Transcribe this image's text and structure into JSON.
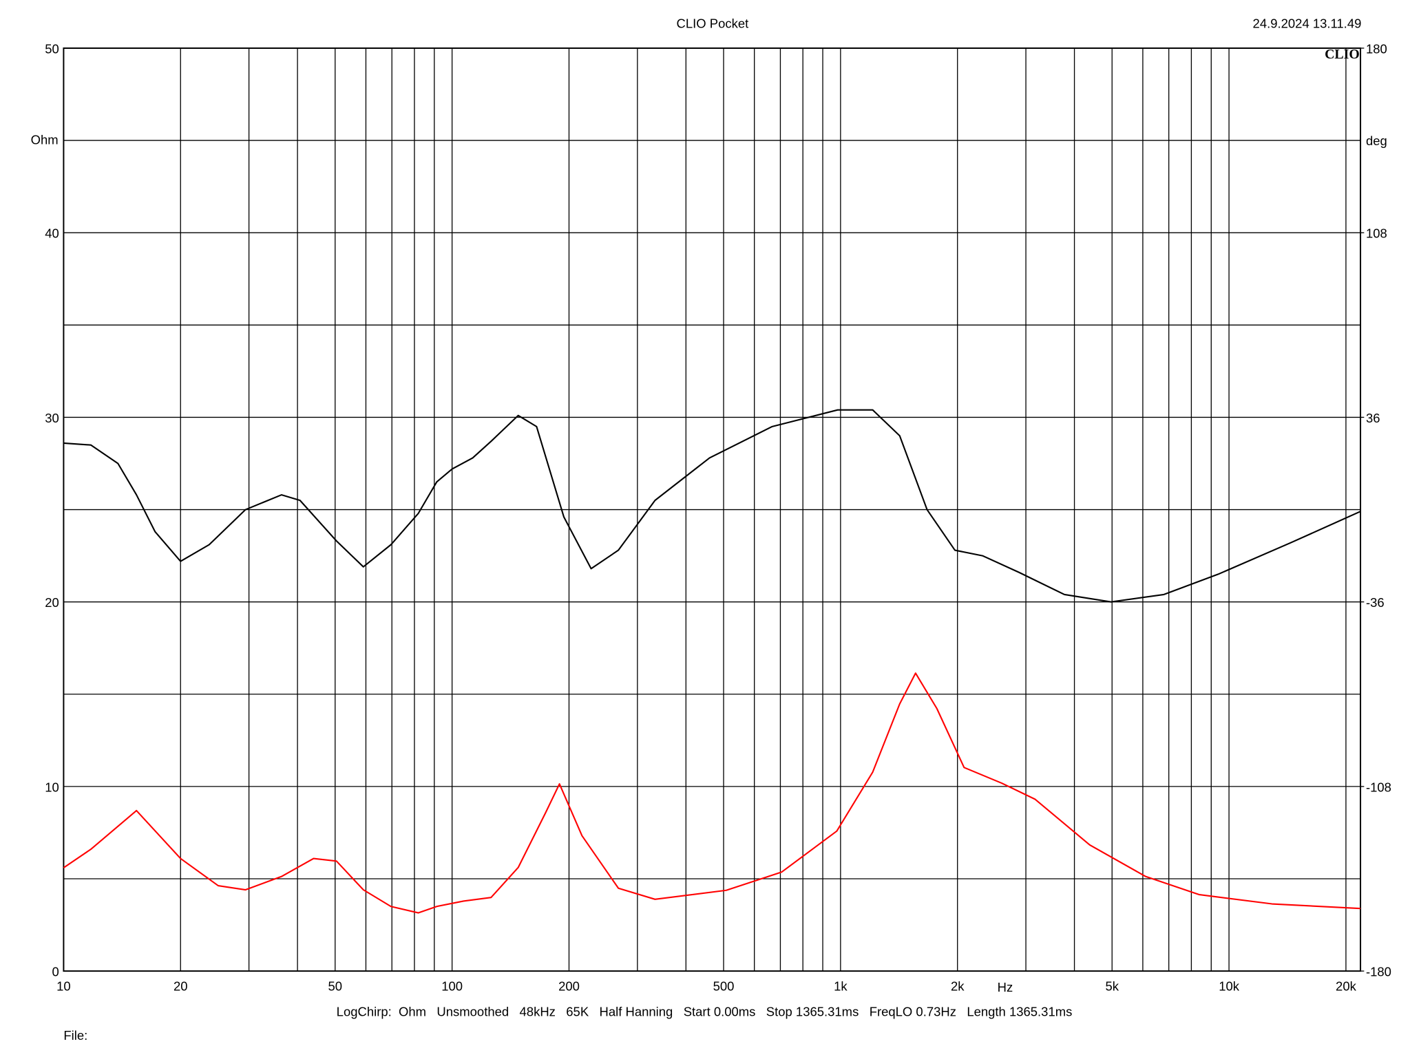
{
  "chart_data": {
    "type": "line",
    "title": "CLIO Pocket",
    "date": "24.9.2024 13.11.49",
    "logo": "CLIO",
    "ylabel": "Ohm",
    "y2label": "deg",
    "x_label": "Hz",
    "footer": "LogChirp:  Ohm   Unsmoothed   48kHz   65K   Half Hanning   Start 0.00ms   Stop 1365.31ms   FreqLO 0.73Hz   Length 1365.31ms",
    "file_label": "File:",
    "xscale": "log",
    "grid": true,
    "xlim": [
      10,
      21800
    ],
    "xticks": [
      10,
      20,
      50,
      100,
      200,
      500,
      {
        "value": 1000,
        "label": "1k"
      },
      {
        "value": 2000,
        "label": "2k"
      },
      {
        "value": 5000,
        "label": "5k"
      },
      {
        "value": 10000,
        "label": "10k"
      },
      {
        "value": 20000,
        "label": "20k"
      }
    ],
    "xminor": [
      30,
      40,
      60,
      70,
      80,
      90,
      300,
      400,
      600,
      700,
      800,
      900,
      3000,
      4000,
      6000,
      7000,
      8000,
      9000
    ],
    "ylim": [
      0,
      50
    ],
    "yticks": [
      0,
      10,
      20,
      30,
      40,
      50
    ],
    "yminor": [
      5,
      15,
      25,
      35,
      45
    ],
    "y2lim": [
      -180,
      180
    ],
    "y2ticks": [
      -180,
      -108,
      -36,
      36,
      108,
      180
    ],
    "series": [
      {
        "color": "#000000",
        "x": [
          10,
          11.75,
          13.8,
          15.4,
          17.2,
          20,
          23.7,
          29.4,
          36.4,
          40.6,
          50.4,
          59.1,
          69.6,
          81.9,
          91.3,
          100,
          113,
          126,
          148,
          165,
          194,
          228,
          268,
          333,
          460,
          667,
          983,
          1210,
          1420,
          1670,
          1970,
          2320,
          2880,
          3770,
          4970,
          6800,
          9380,
          14400,
          21800
        ],
        "values": [
          28.6,
          28.5,
          27.5,
          25.8,
          23.8,
          22.2,
          23.1,
          25.0,
          25.8,
          25.5,
          23.3,
          21.9,
          23.1,
          24.8,
          26.5,
          27.2,
          27.8,
          28.7,
          30.1,
          29.5,
          24.6,
          21.8,
          22.8,
          25.5,
          27.8,
          29.5,
          30.4,
          30.4,
          29.0,
          25.0,
          22.8,
          22.5,
          21.6,
          20.4,
          20.0,
          20.4,
          21.5,
          23.2,
          24.9
        ]
      },
      {
        "color": "#ff0000",
        "axis": "y2",
        "x": [
          10,
          11.75,
          15.4,
          20,
          25,
          29.4,
          36.4,
          44,
          50.4,
          59.1,
          69.6,
          81.9,
          91.3,
          107,
          126,
          148,
          174,
          189,
          216,
          268,
          333,
          508,
          705,
          978,
          1210,
          1420,
          1560,
          1770,
          2080,
          2600,
          3170,
          4380,
          6100,
          8390,
          12900,
          21800
        ],
        "values": [
          -139.7,
          -132.5,
          -117.4,
          -136.1,
          -146.7,
          -148.3,
          -143.1,
          -136.1,
          -137.1,
          -148.3,
          -154.8,
          -157.3,
          -154.8,
          -152.7,
          -151.3,
          -139.6,
          -118.3,
          -107.0,
          -127.2,
          -147.7,
          -152.0,
          -148.5,
          -141.4,
          -125.4,
          -102.4,
          -75.8,
          -63.8,
          -77.6,
          -100.6,
          -106.7,
          -113.0,
          -130.8,
          -143.1,
          -150.2,
          -153.8,
          -155.6
        ]
      }
    ]
  }
}
